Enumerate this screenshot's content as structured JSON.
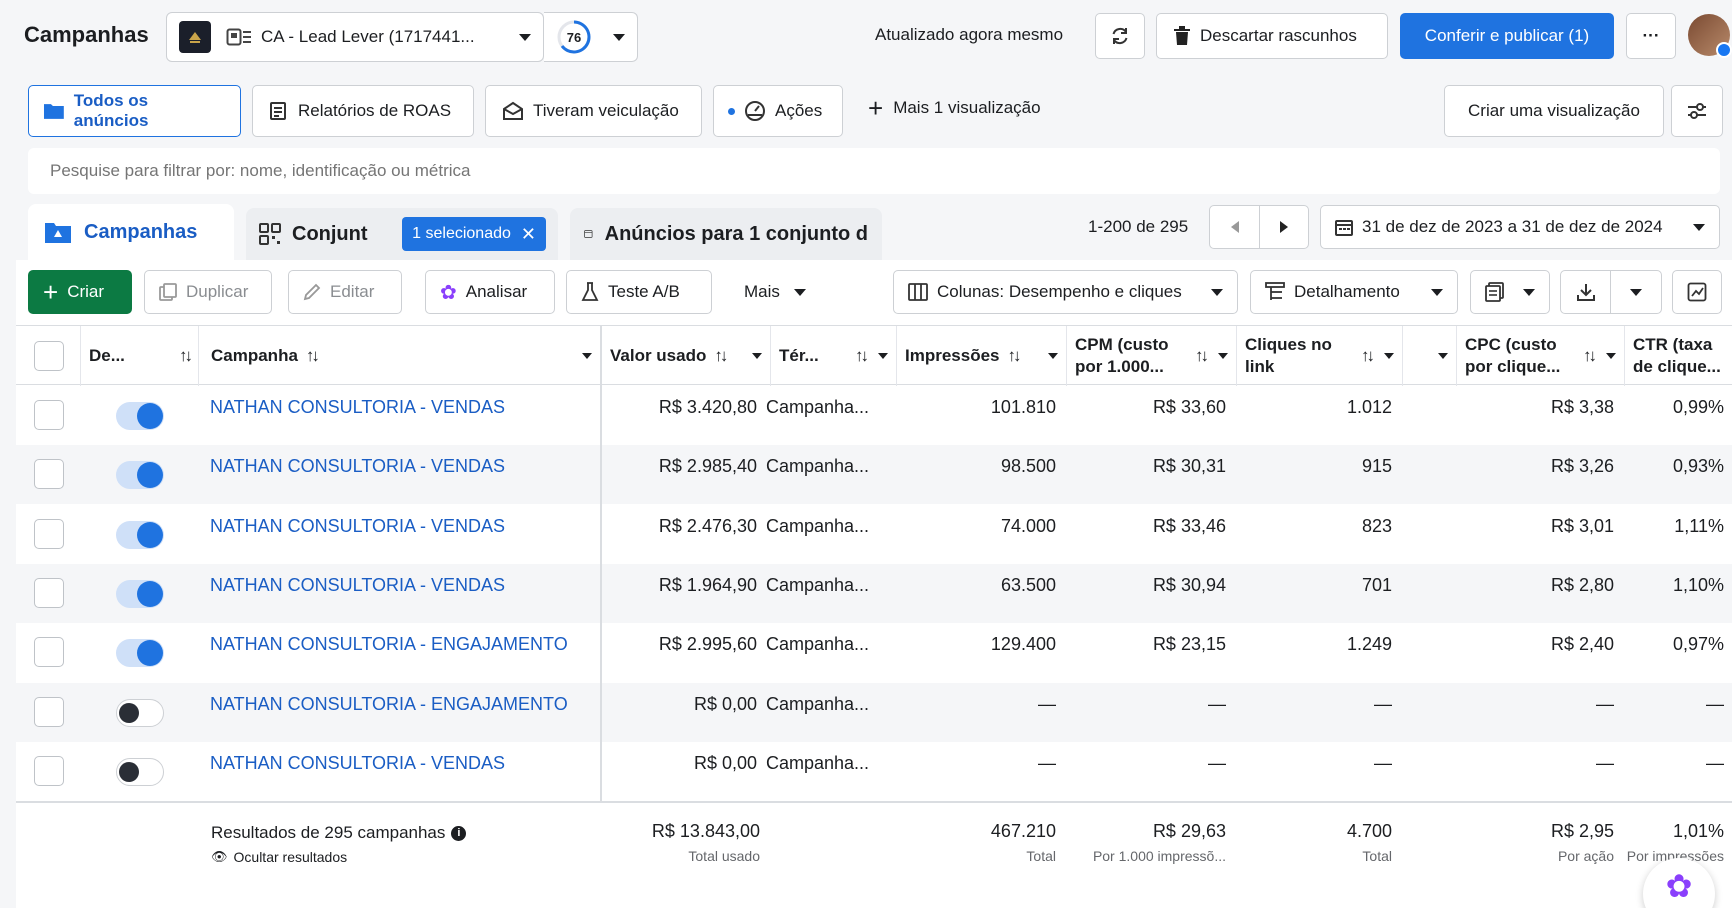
{
  "header": {
    "title": "Campanhas",
    "account_name": "CA - Lead Lever (1717441...",
    "score": "76",
    "updated": "Atualizado agora mesmo",
    "discard_label": "Descartar rascunhos",
    "publish_label": "Conferir e publicar (1)",
    "more_label": "···"
  },
  "views": {
    "all_ads": "Todos os anúncios",
    "roas": "Relatórios de ROAS",
    "delivered": "Tiveram veiculação",
    "actions": "Ações",
    "more_views": "Mais 1 visualização",
    "create_view": "Criar uma visualização"
  },
  "search": {
    "placeholder": "Pesquise para filtrar por: nome, identificação ou métrica"
  },
  "tabs": {
    "campaigns": "Campanhas",
    "adsets": "Conjunt",
    "selected_badge": "1 selecionado",
    "ads": "Anúncios para 1 conjunto d"
  },
  "pagination": {
    "range": "1-200 de 295"
  },
  "date_range": "31 de dez de 2023 a 31 de dez de 2024",
  "toolbar": {
    "create": "Criar",
    "duplicate": "Duplicar",
    "edit": "Editar",
    "analyze": "Analisar",
    "ab_test": "Teste A/B",
    "more": "Mais",
    "columns": "Colunas: Desempenho e cliques",
    "breakdown": "Detalhamento"
  },
  "table": {
    "headers": {
      "delivery": "De...",
      "campaign": "Campanha",
      "spent": "Valor usado",
      "end": "Tér...",
      "impressions": "Impressões",
      "cpm_1": "CPM (custo",
      "cpm_2": "por 1.000...",
      "clicks_1": "Cliques no",
      "clicks_2": "link",
      "cpc_1": "CPC (custo",
      "cpc_2": "por clique...",
      "ctr_1": "CTR (taxa",
      "ctr_2": "de clique..."
    },
    "rows": [
      {
        "on": true,
        "name": "NATHAN CONSULTORIA - VENDAS",
        "spent": "R$ 3.420,80",
        "end": "Campanha...",
        "impressions": "101.810",
        "cpm": "R$ 33,60",
        "clicks": "1.012",
        "cpc": "R$ 3,38",
        "ctr": "0,99%"
      },
      {
        "on": true,
        "name": "NATHAN CONSULTORIA - VENDAS",
        "spent": "R$ 2.985,40",
        "end": "Campanha...",
        "impressions": "98.500",
        "cpm": "R$ 30,31",
        "clicks": "915",
        "cpc": "R$ 3,26",
        "ctr": "0,93%"
      },
      {
        "on": true,
        "name": "NATHAN CONSULTORIA - VENDAS",
        "spent": "R$ 2.476,30",
        "end": "Campanha...",
        "impressions": "74.000",
        "cpm": "R$ 33,46",
        "clicks": "823",
        "cpc": "R$ 3,01",
        "ctr": "1,11%"
      },
      {
        "on": true,
        "name": "NATHAN CONSULTORIA - VENDAS",
        "spent": "R$ 1.964,90",
        "end": "Campanha...",
        "impressions": "63.500",
        "cpm": "R$ 30,94",
        "clicks": "701",
        "cpc": "R$ 2,80",
        "ctr": "1,10%"
      },
      {
        "on": true,
        "name": "NATHAN CONSULTORIA - ENGAJAMENTO",
        "spent": "R$ 2.995,60",
        "end": "Campanha...",
        "impressions": "129.400",
        "cpm": "R$ 23,15",
        "clicks": "1.249",
        "cpc": "R$ 2,40",
        "ctr": "0,97%"
      },
      {
        "on": false,
        "name": "NATHAN CONSULTORIA - ENGAJAMENTO",
        "spent": "R$ 0,00",
        "end": "Campanha...",
        "impressions": "—",
        "cpm": "—",
        "clicks": "—",
        "cpc": "—",
        "ctr": "—"
      },
      {
        "on": false,
        "name": "NATHAN CONSULTORIA - VENDAS",
        "spent": "R$ 0,00",
        "end": "Campanha...",
        "impressions": "—",
        "cpm": "—",
        "clicks": "—",
        "cpc": "—",
        "ctr": "—"
      }
    ],
    "totals": {
      "label": "Resultados de 295 campanhas",
      "hide": "Ocultar resultados",
      "spent": "R$ 13.843,00",
      "spent_sub": "Total usado",
      "impressions": "467.210",
      "impressions_sub": "Total",
      "cpm": "R$ 29,63",
      "cpm_sub": "Por 1.000 impressõ...",
      "clicks": "4.700",
      "clicks_sub": "Total",
      "cpc": "R$ 2,95",
      "cpc_sub": "Por ação",
      "ctr": "1,01%",
      "ctr_sub": "Por impressões"
    }
  },
  "colors": {
    "primary": "#1f73e0",
    "create_green": "#0c7a43",
    "link": "#1a5dc4"
  }
}
